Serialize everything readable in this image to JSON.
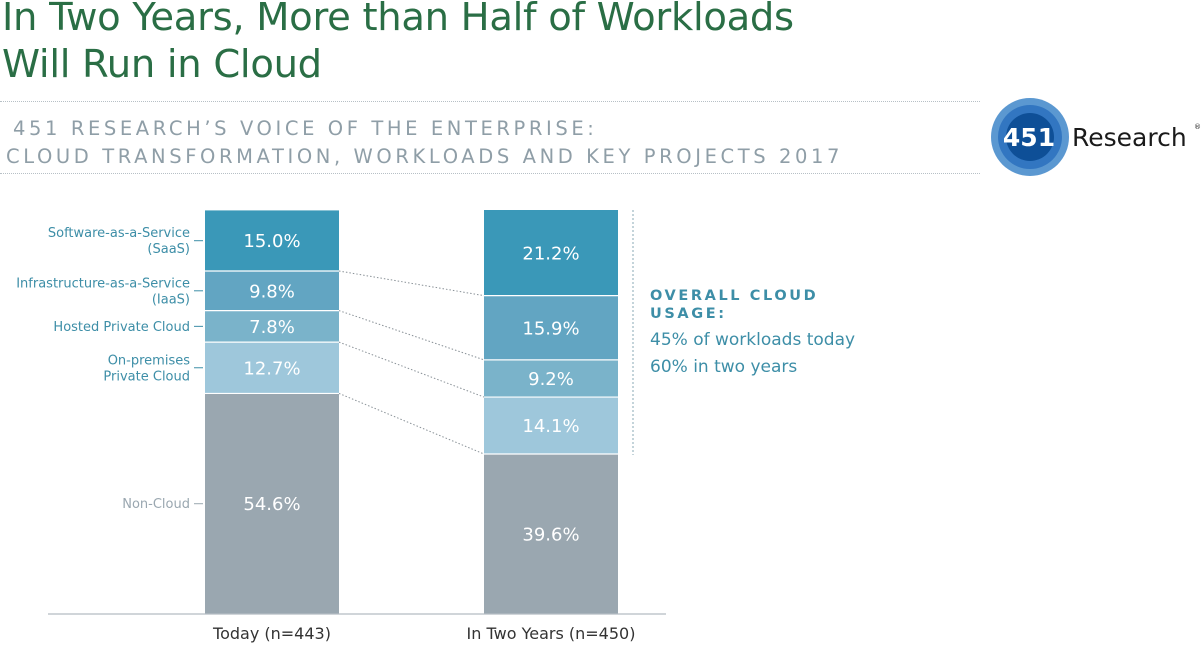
{
  "header": {
    "title": "In Two Years, More than Half of Workloads Will Run in Cloud",
    "subtitle_line1": "451 RESEARCH’S VOICE OF THE ENTERPRISE:",
    "subtitle_line2": "CLOUD TRANSFORMATION, WORKLOADS AND KEY PROJECTS 2017"
  },
  "logo": {
    "number": "451",
    "word": "Research",
    "mark": "®",
    "colors": {
      "outer": "#5b98d1",
      "middle": "#3276c1",
      "inner": "#0e4f97",
      "text": "#1a1a1a"
    }
  },
  "callout": {
    "heading": "OVERALL CLOUD USAGE:",
    "line1": "45% of workloads today",
    "line2": "60% in two years"
  },
  "chart_data": {
    "type": "bar",
    "stacked": true,
    "percent_stacked": true,
    "categories": [
      "Today (n=443)",
      "In Two Years (n=450)"
    ],
    "series": [
      {
        "name": "Non-Cloud",
        "values": [
          54.6,
          39.6
        ],
        "labels": [
          "54.6%",
          "39.6%"
        ],
        "color": "#9aa7b0"
      },
      {
        "name": "On-premises Private Cloud",
        "label_lines": [
          "On-premises",
          "Private Cloud"
        ],
        "values": [
          12.7,
          14.1
        ],
        "labels": [
          "12.7%",
          "14.1%"
        ],
        "color": "#9ec7db"
      },
      {
        "name": "Hosted Private Cloud",
        "label_lines": [
          "Hosted Private Cloud"
        ],
        "values": [
          7.8,
          9.2
        ],
        "labels": [
          "7.8%",
          "9.2%"
        ],
        "color": "#7ab3ca"
      },
      {
        "name": "Infrastructure-as-a-Service (IaaS)",
        "label_lines": [
          "Infrastructure-as-a-Service",
          "(IaaS)"
        ],
        "values": [
          9.8,
          15.9
        ],
        "labels": [
          "9.8%",
          "15.9%"
        ],
        "color": "#62a5c2"
      },
      {
        "name": "Software-as-a-Service (SaaS)",
        "label_lines": [
          "Software-as-a-Service",
          "(SaaS)"
        ],
        "values": [
          15.0,
          21.2
        ],
        "labels": [
          "15.0%",
          "21.2%"
        ],
        "color": "#3a98b8"
      }
    ],
    "ylim": [
      0,
      100
    ],
    "grid": false,
    "legend": "left",
    "colors": {
      "label_text": "#3d8ea7",
      "noncloud_label": "#9aa7b0",
      "axis": "#b5bcc2",
      "connector": "#8a9298"
    }
  }
}
